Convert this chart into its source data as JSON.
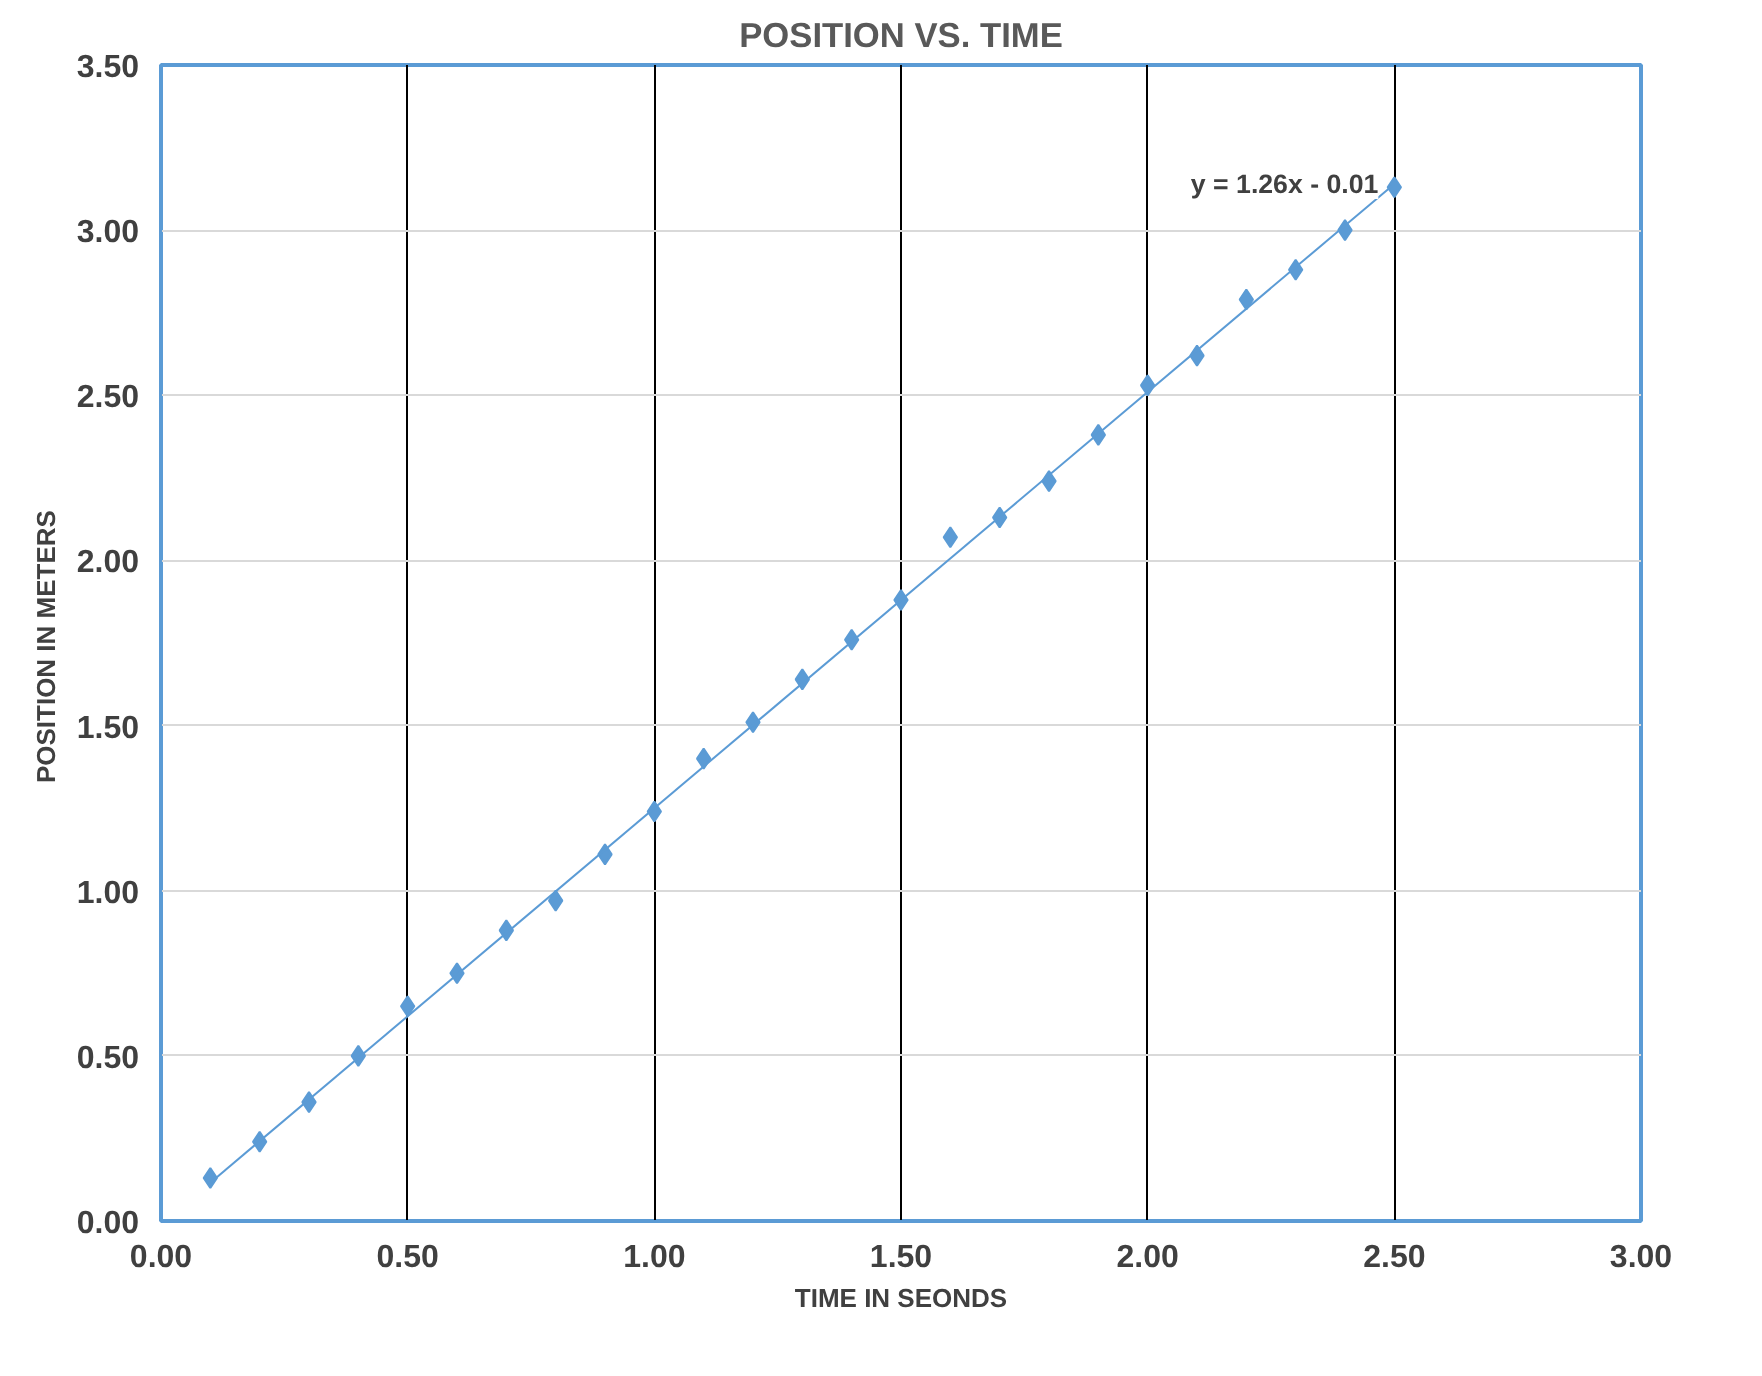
{
  "chart_data": {
    "type": "scatter",
    "title": "POSITION VS. TIME",
    "xlabel": "TIME IN SEONDS",
    "ylabel": "POSITION IN  METERS",
    "x": [
      0.1,
      0.2,
      0.3,
      0.4,
      0.5,
      0.6,
      0.7,
      0.8,
      0.9,
      1.0,
      1.1,
      1.2,
      1.3,
      1.4,
      1.5,
      1.6,
      1.7,
      1.8,
      1.9,
      2.0,
      2.1,
      2.2,
      2.3,
      2.4,
      2.5
    ],
    "series": [
      {
        "color": "#5b9bd5",
        "marker": "diamond",
        "values": [
          0.13,
          0.24,
          0.36,
          0.5,
          0.65,
          0.75,
          0.88,
          0.97,
          1.11,
          1.24,
          1.4,
          1.51,
          1.64,
          1.76,
          1.88,
          2.07,
          2.13,
          2.24,
          2.38,
          2.53,
          2.62,
          2.79,
          2.88,
          3.0,
          3.13
        ]
      },
      {
        "type": "line",
        "color": "#5b9bd5",
        "x": [
          0.1,
          2.5
        ],
        "values": [
          0.116,
          3.14
        ]
      }
    ],
    "annotations": [
      "y = 1.26x - 0.01"
    ],
    "xlim": [
      0,
      3
    ],
    "ylim": [
      0,
      3.5
    ],
    "xticks": [
      {
        "value": 0,
        "label": "0.00"
      },
      {
        "value": 0.5,
        "label": "0.50"
      },
      {
        "value": 1,
        "label": "1.00"
      },
      {
        "value": 1.5,
        "label": "1.50"
      },
      {
        "value": 2,
        "label": "2.00"
      },
      {
        "value": 2.5,
        "label": "2.50"
      },
      {
        "value": 3,
        "label": "3.00"
      }
    ],
    "yticks": [
      {
        "value": 0,
        "label": "0.00"
      },
      {
        "value": 0.5,
        "label": "0.50"
      },
      {
        "value": 1,
        "label": "1.00"
      },
      {
        "value": 1.5,
        "label": "1.50"
      },
      {
        "value": 2,
        "label": "2.00"
      },
      {
        "value": 2.5,
        "label": "2.50"
      },
      {
        "value": 3,
        "label": "3.00"
      },
      {
        "value": 3.5,
        "label": "3.50"
      }
    ],
    "grid": true
  }
}
